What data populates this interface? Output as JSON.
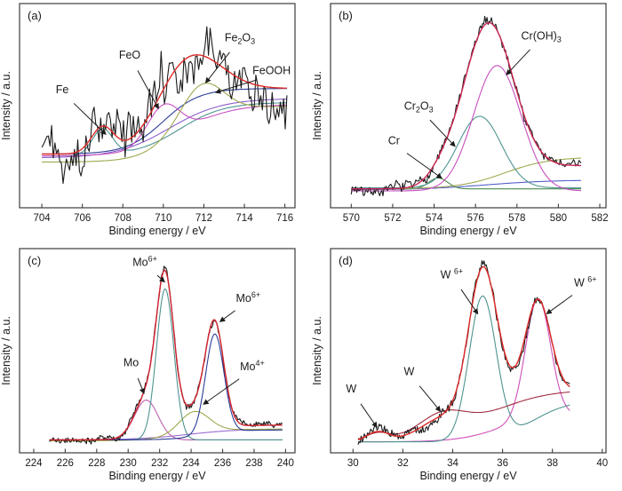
{
  "figure": {
    "background": "#ffffff",
    "axis_color": "#3c3c3c",
    "text_color": "#1a1a1a"
  },
  "chart_data": [
    {
      "panel_label": "(a)",
      "type": "line",
      "xlabel": "Binding energy / eV",
      "ylabel": "Intensity / a.u.",
      "xlim": [
        702.9,
        716.5
      ],
      "xticks": [
        704,
        706,
        708,
        710,
        712,
        714,
        716
      ],
      "xdata": [
        704.0,
        716.1
      ],
      "ylim": [
        0,
        1
      ],
      "grid": false,
      "legend": "none",
      "noise": {
        "amp": 0.1,
        "seed": 41,
        "n": 150
      },
      "series": [
        {
          "name": "Fe component",
          "key": "fe-curve",
          "color": "#4e9490",
          "parts": [
            {
              "c": [
                0.26
              ]
            },
            {
              "g": [
                707.0,
                0.5,
                0.13
              ]
            },
            {
              "s": [
                710.8,
                1.1,
                0.27
              ]
            }
          ]
        },
        {
          "name": "violet background",
          "key": "violet-background",
          "color": "#8a5fc8",
          "parts": [
            {
              "c": [
                0.25
              ]
            },
            {
              "s": [
                710.3,
                1.3,
                0.3
              ]
            }
          ]
        },
        {
          "name": "FeOOH component",
          "key": "feooh-curve",
          "color": "#2c3e97",
          "parts": [
            {
              "c": [
                0.27
              ]
            },
            {
              "s": [
                710.0,
                0.9,
                0.33
              ]
            }
          ]
        },
        {
          "name": "FeO component",
          "key": "feo-curve",
          "color": "#c84fc0",
          "parts": [
            {
              "c": [
                0.26
              ]
            },
            {
              "s": [
                711.0,
                1.2,
                0.26
              ]
            },
            {
              "g": [
                710.0,
                0.8,
                0.18
              ]
            }
          ]
        },
        {
          "name": "Fe2O3 component",
          "key": "fe2o3-curve",
          "color": "#a0a84e",
          "parts": [
            {
              "c": [
                0.23
              ]
            },
            {
              "s": [
                710.5,
                0.9,
                0.28
              ]
            },
            {
              "g": [
                711.9,
                1.0,
                0.16
              ]
            }
          ]
        },
        {
          "name": "measured data",
          "key": "measured-data",
          "color": "#1c1c1c",
          "data": true
        },
        {
          "name": "fit envelope",
          "key": "fit-envelope",
          "color": "#dc2a28",
          "width": 1.4,
          "envelope": true,
          "parts": [
            {
              "c": [
                0.27
              ]
            },
            {
              "g": [
                707.0,
                0.55,
                0.13
              ]
            },
            {
              "s": [
                709.8,
                0.75,
                0.33
              ]
            },
            {
              "g": [
                711.3,
                1.5,
                0.2
              ]
            }
          ]
        }
      ],
      "annotations": [
        {
          "text": [
            {
              "t": "Fe"
            }
          ],
          "lx": 0.155,
          "ly": 0.44,
          "tx": 707.15,
          "ty": 0.37
        },
        {
          "text": [
            {
              "t": "FeO"
            }
          ],
          "lx": 0.4,
          "ly": 0.27,
          "tx": 709.75,
          "ty": 0.5
        },
        {
          "text": [
            {
              "t": "Fe"
            },
            {
              "t": "2",
              "m": "sub"
            },
            {
              "t": "O"
            },
            {
              "t": "3",
              "m": "sub"
            }
          ],
          "lx": 0.8,
          "ly": 0.185,
          "tx": 712.1,
          "ty": 0.63
        },
        {
          "text": [
            {
              "t": "FeOOH"
            }
          ],
          "lx": 0.915,
          "ly": 0.345,
          "tx": 712.6,
          "ty": 0.58
        }
      ]
    },
    {
      "panel_label": "(b)",
      "type": "line",
      "xlabel": "Binding energy / eV",
      "ylabel": "Intensity / a.u.",
      "xlim": [
        569.0,
        582.3
      ],
      "xticks": [
        570,
        572,
        574,
        576,
        578,
        580,
        582
      ],
      "xdata": [
        570.0,
        581.1
      ],
      "ylim": [
        0,
        1
      ],
      "grid": false,
      "legend": "none",
      "noise": {
        "amp": 0.021,
        "seed": 7,
        "n": 210
      },
      "series": [
        {
          "name": "blue baseline",
          "key": "blue-baseline",
          "color": "#5560cc",
          "parts": [
            {
              "c": [
                0.09
              ]
            },
            {
              "s": [
                576.5,
                1.6,
                0.05
              ]
            }
          ]
        },
        {
          "name": "Cr component",
          "key": "cr-curve",
          "color": "#4a8a50",
          "parts": [
            {
              "c": [
                0.095
              ]
            },
            {
              "g": [
                574.2,
                0.45,
                0.055
              ]
            }
          ]
        },
        {
          "name": "olive background",
          "key": "olive-background",
          "color": "#a0a84e",
          "parts": [
            {
              "c": [
                0.095
              ]
            },
            {
              "s": [
                577.4,
                1.1,
                0.16
              ]
            }
          ]
        },
        {
          "name": "Cr2O3 component",
          "key": "cr2o3-curve",
          "color": "#4e9490",
          "parts": [
            {
              "c": [
                0.1
              ]
            },
            {
              "g": [
                576.2,
                1.05,
                0.36
              ]
            }
          ]
        },
        {
          "name": "Cr(OH)3 component",
          "key": "croh3-curve",
          "color": "#c84fc0",
          "parts": [
            {
              "c": [
                0.085
              ]
            },
            {
              "g": [
                577.05,
                1.15,
                0.63
              ]
            }
          ]
        },
        {
          "name": "measured data",
          "key": "measured-data",
          "color": "#1c1c1c",
          "data": true
        },
        {
          "name": "fit envelope",
          "key": "fit-envelope",
          "color": "#cd2653",
          "width": 1.4,
          "envelope": true,
          "parts": [
            {
              "c": [
                0.095
              ]
            },
            {
              "s": [
                577.5,
                1.0,
                0.12
              ]
            },
            {
              "g": [
                576.6,
                1.22,
                0.8
              ]
            },
            {
              "g": [
                574.3,
                0.6,
                0.04
              ]
            }
          ]
        }
      ],
      "annotations": [
        {
          "text": [
            {
              "t": "Cr(OH)"
            },
            {
              "t": "3",
              "m": "sub"
            }
          ],
          "lx": 0.765,
          "ly": 0.175,
          "tx": 577.5,
          "ty": 0.67
        },
        {
          "text": [
            {
              "t": "Cr"
            },
            {
              "t": "2",
              "m": "sub"
            },
            {
              "t": "O"
            },
            {
              "t": "3",
              "m": "sub"
            }
          ],
          "lx": 0.32,
          "ly": 0.52,
          "tx": 575.0,
          "ty": 0.31
        },
        {
          "text": [
            {
              "t": "Cr"
            }
          ],
          "lx": 0.23,
          "ly": 0.69,
          "tx": 574.35,
          "ty": 0.15
        }
      ]
    },
    {
      "panel_label": "(c)",
      "type": "line",
      "xlabel": "Binding energy / eV",
      "ylabel": "Intensity / a.u.",
      "xlim": [
        223.1,
        240.6
      ],
      "xticks": [
        224,
        226,
        228,
        230,
        232,
        234,
        236,
        238,
        240
      ],
      "xdata": [
        225.0,
        239.8
      ],
      "ylim": [
        0,
        1
      ],
      "grid": false,
      "legend": "none",
      "noise": {
        "amp": 0.013,
        "seed": 19,
        "n": 240
      },
      "series": [
        {
          "name": "purple baseline",
          "key": "purple-baseline",
          "color": "#9a6ad0",
          "parts": [
            {
              "c": [
                0.065
              ]
            },
            {
              "s": [
                233.8,
                1.6,
                0.055
              ]
            }
          ]
        },
        {
          "name": "Mo component",
          "key": "mo-curve",
          "color": "#c060b0",
          "parts": [
            {
              "c": [
                0.065
              ]
            },
            {
              "g": [
                231.15,
                0.75,
                0.2
              ]
            }
          ]
        },
        {
          "name": "Mo4+ component",
          "key": "mo4-curve",
          "color": "#a0a84e",
          "parts": [
            {
              "c": [
                0.06
              ]
            },
            {
              "s": [
                233.5,
                1.3,
                0.06
              ]
            },
            {
              "g": [
                234.2,
                0.95,
                0.11
              ]
            }
          ]
        },
        {
          "name": "Mo6+ 3d5/2 component",
          "key": "mo6-3d52-curve",
          "color": "#4e9490",
          "parts": [
            {
              "c": [
                0.065
              ]
            },
            {
              "g": [
                232.35,
                0.55,
                0.76
              ]
            }
          ]
        },
        {
          "name": "Mo6+ 3d3/2 component",
          "key": "mo6-3d32-curve",
          "color": "#2c3e97",
          "parts": [
            {
              "c": [
                0.065
              ]
            },
            {
              "s": [
                234.8,
                1.0,
                0.05
              ]
            },
            {
              "g": [
                235.5,
                0.58,
                0.5
              ]
            }
          ]
        },
        {
          "name": "measured data",
          "key": "measured-data",
          "color": "#1c1c1c",
          "data": true
        },
        {
          "name": "fit envelope",
          "key": "fit-envelope",
          "color": "#d42430",
          "width": 1.4,
          "envelope": true,
          "parts": [
            {
              "c": [
                0.065
              ]
            },
            {
              "g": [
                231.15,
                0.75,
                0.2
              ]
            },
            {
              "g": [
                232.35,
                0.55,
                0.76
              ]
            },
            {
              "s": [
                233.6,
                1.3,
                0.075
              ]
            },
            {
              "g": [
                234.2,
                0.95,
                0.11
              ]
            },
            {
              "g": [
                235.5,
                0.58,
                0.5
              ]
            }
          ]
        }
      ],
      "annotations": [
        {
          "text": [
            {
              "t": "Mo"
            },
            {
              "t": "6+",
              "m": "sup"
            }
          ],
          "lx": 0.455,
          "ly": 0.085,
          "tx": 232.3,
          "ty": 0.86
        },
        {
          "text": [
            {
              "t": "Mo"
            },
            {
              "t": "6+",
              "m": "sup"
            }
          ],
          "lx": 0.83,
          "ly": 0.26,
          "tx": 235.85,
          "ty": 0.66
        },
        {
          "text": [
            {
              "t": "Mo"
            }
          ],
          "lx": 0.405,
          "ly": 0.575,
          "tx": 231.0,
          "ty": 0.3
        },
        {
          "text": [
            {
              "t": "Mo"
            },
            {
              "t": "4+",
              "m": "sup"
            }
          ],
          "lx": 0.845,
          "ly": 0.595,
          "tx": 234.8,
          "ty": 0.245
        }
      ]
    },
    {
      "panel_label": "(d)",
      "type": "line",
      "xlabel": "Binding energy / eV",
      "ylabel": "Intensity / a.u.",
      "xlim": [
        29.1,
        40.15
      ],
      "xticks": [
        30,
        32,
        34,
        36,
        38,
        40
      ],
      "xdata": [
        30.2,
        38.7
      ],
      "ylim": [
        0,
        1
      ],
      "grid": false,
      "legend": "none",
      "noise": {
        "amp": 0.02,
        "seed": 23,
        "n": 200
      },
      "series": [
        {
          "name": "magenta component",
          "key": "w6-4f52-curve",
          "color": "#d04fb8",
          "parts": [
            {
              "c": [
                0.055
              ]
            },
            {
              "s": [
                35.9,
                0.85,
                0.14
              ]
            },
            {
              "g": [
                37.42,
                0.5,
                0.6
              ]
            }
          ]
        },
        {
          "name": "teal component",
          "key": "w6-4f72-curve",
          "color": "#4e9490",
          "parts": [
            {
              "c": [
                0.055
              ]
            },
            {
              "g": [
                35.2,
                0.54,
                0.72
              ]
            },
            {
              "s": [
                37.2,
                0.75,
                0.21
              ]
            }
          ]
        },
        {
          "name": "dark red background",
          "key": "w-background",
          "color": "#a22c3e",
          "parts": [
            {
              "c": [
                0.06
              ]
            },
            {
              "g": [
                31.0,
                0.45,
                0.035
              ]
            },
            {
              "g": [
                33.6,
                0.95,
                0.105
              ]
            },
            {
              "s": [
                35.4,
                1.15,
                0.26
              ]
            }
          ]
        },
        {
          "name": "measured data",
          "key": "measured-data",
          "color": "#1c1c1c",
          "data": true
        },
        {
          "name": "fit envelope",
          "key": "fit-envelope",
          "color": "#dc2a28",
          "width": 1.4,
          "envelope": true,
          "parts": [
            {
              "c": [
                0.055
              ]
            },
            {
              "g": [
                31.0,
                0.45,
                0.05
              ]
            },
            {
              "g": [
                33.6,
                0.95,
                0.105
              ]
            },
            {
              "s": [
                34.9,
                0.55,
                0.26
              ]
            },
            {
              "g": [
                35.2,
                0.56,
                0.69
              ]
            },
            {
              "g": [
                37.42,
                0.5,
                0.46
              ]
            }
          ]
        }
      ],
      "annotations": [
        {
          "text": [
            {
              "t": "W "
            },
            {
              "t": "6+",
              "m": "sup"
            }
          ],
          "lx": 0.44,
          "ly": 0.145,
          "tx": 35.0,
          "ty": 0.7
        },
        {
          "text": [
            {
              "t": "W "
            },
            {
              "t": "6+",
              "m": "sup"
            }
          ],
          "lx": 0.925,
          "ly": 0.185,
          "tx": 37.78,
          "ty": 0.7
        },
        {
          "text": [
            {
              "t": "W"
            }
          ],
          "lx": 0.285,
          "ly": 0.62,
          "tx": 33.5,
          "ty": 0.21
        },
        {
          "text": [
            {
              "t": "W"
            }
          ],
          "lx": 0.075,
          "ly": 0.705,
          "tx": 30.95,
          "ty": 0.13
        }
      ]
    }
  ]
}
